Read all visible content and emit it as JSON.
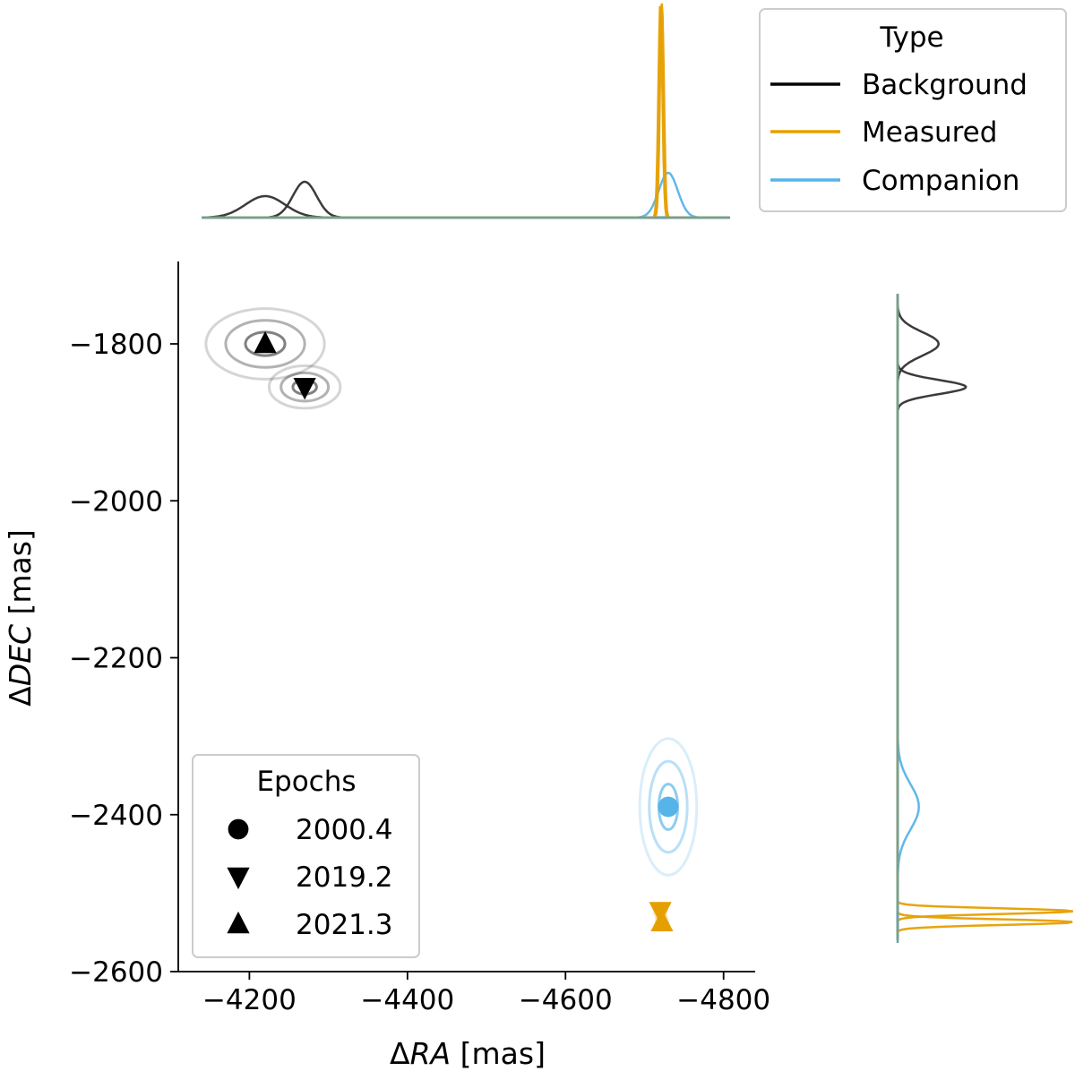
{
  "chart_data": {
    "type": "scatter",
    "description_free": true,
    "xlabel_prefix": "Δ",
    "xlabel_var": "RA",
    "xlabel_unit": " [mas]",
    "ylabel_prefix": "Δ",
    "ylabel_var": "DEC",
    "ylabel_unit": " [mas]",
    "xlim": [
      -4110,
      -4840
    ],
    "ylim": [
      -2600,
      -1695
    ],
    "xticks": [
      -4200,
      -4400,
      -4600,
      -4800
    ],
    "yticks": [
      -1800,
      -2000,
      -2200,
      -2400,
      -2600
    ],
    "xtick_labels": [
      "−4200",
      "−4400",
      "−4600",
      "−4800"
    ],
    "ytick_labels": [
      "−1800",
      "−2000",
      "−2200",
      "−2400",
      "−2600"
    ],
    "colors": {
      "Background": "#303030",
      "Measured": "#E69F00",
      "Companion": "#56B4E9"
    },
    "points": [
      {
        "type": "Background",
        "epoch": "2021.3",
        "marker": "triangle-up",
        "x": -4220,
        "y": -1800,
        "sx": 25,
        "sy": 15
      },
      {
        "type": "Background",
        "epoch": "2019.2",
        "marker": "triangle-down",
        "x": -4270,
        "y": -1855,
        "sx": 15,
        "sy": 9
      },
      {
        "type": "Companion",
        "epoch": "2000.4",
        "marker": "circle",
        "x": -4730,
        "y": -2390,
        "sx": 12,
        "sy": 29
      },
      {
        "type": "Measured",
        "epoch": "2019.2",
        "marker": "triangle-down",
        "x": -4720,
        "y": -2523,
        "sx": 2.5,
        "sy": 3.5
      },
      {
        "type": "Measured",
        "epoch": "2021.3",
        "marker": "triangle-up",
        "x": -4722,
        "y": -2537,
        "sx": 2.5,
        "sy": 3.5
      }
    ],
    "legend_type": {
      "title": "Type",
      "placement": "top-right",
      "entries": [
        "Background",
        "Measured",
        "Companion"
      ]
    },
    "legend_epochs": {
      "title": "Epochs",
      "placement": "lower-left",
      "entries": [
        {
          "label": "2000.4",
          "marker": "circle"
        },
        {
          "label": "2019.2",
          "marker": "triangle-down"
        },
        {
          "label": "2021.3",
          "marker": "triangle-up"
        }
      ]
    }
  }
}
